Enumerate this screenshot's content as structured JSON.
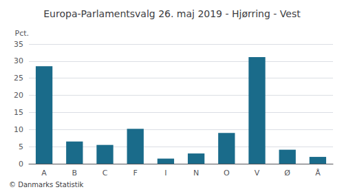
{
  "chart_data": {
    "type": "bar",
    "title": "Europa-Parlamentsvalg 26. maj 2019 - Hjørring - Vest",
    "ylabel": "Pct.",
    "footer": "© Danmarks Statistik",
    "categories": [
      "A",
      "B",
      "C",
      "F",
      "I",
      "N",
      "O",
      "V",
      "Ø",
      "Å"
    ],
    "values": [
      28.5,
      6.5,
      5.5,
      10.2,
      1.5,
      3.0,
      9.0,
      31.2,
      4.1,
      2.0
    ],
    "color": "#1a6b8a",
    "ylim": [
      0,
      35
    ],
    "yticks": [
      0,
      5,
      10,
      15,
      20,
      25,
      30,
      35
    ],
    "grid": true
  }
}
